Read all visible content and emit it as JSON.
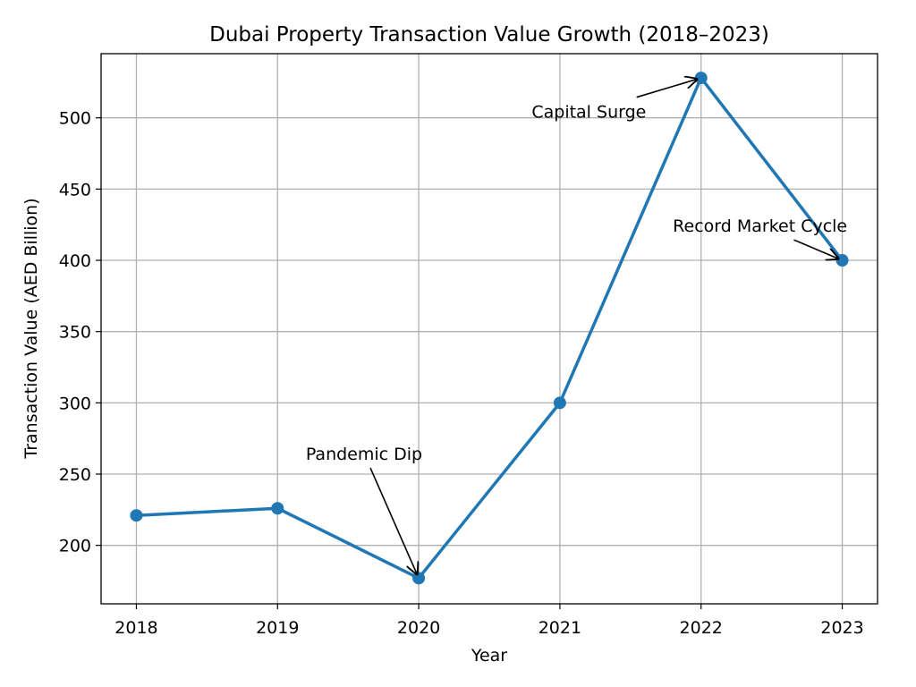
{
  "chart_data": {
    "type": "line",
    "title": "Dubai Property Transaction Value Growth (2018–2023)",
    "xlabel": "Year",
    "ylabel": "Transaction Value (AED Billion)",
    "x": [
      2018,
      2019,
      2020,
      2021,
      2022,
      2023
    ],
    "xtick_labels": [
      "2018",
      "2019",
      "2020",
      "2021",
      "2022",
      "2023"
    ],
    "series": [
      {
        "values": [
          221,
          226,
          177,
          300,
          528,
          400
        ],
        "color": "#1f77b4",
        "marker": "circle"
      }
    ],
    "yticks": [
      200,
      250,
      300,
      350,
      400,
      450,
      500
    ],
    "ytick_labels": [
      "200",
      "250",
      "300",
      "350",
      "400",
      "450",
      "500"
    ],
    "xlim": [
      2017.75,
      2023.25
    ],
    "ylim": [
      159,
      545
    ],
    "grid": true,
    "annotations": [
      {
        "text": "Pandemic Dip",
        "x": 2020,
        "y": 177,
        "text_x": 2019.2,
        "text_y": 260
      },
      {
        "text": "Capital Surge",
        "x": 2022,
        "y": 528,
        "text_x": 2020.8,
        "text_y": 500
      },
      {
        "text": "Record Market Cycle",
        "x": 2023,
        "y": 400,
        "text_x": 2021.8,
        "text_y": 420
      }
    ]
  }
}
